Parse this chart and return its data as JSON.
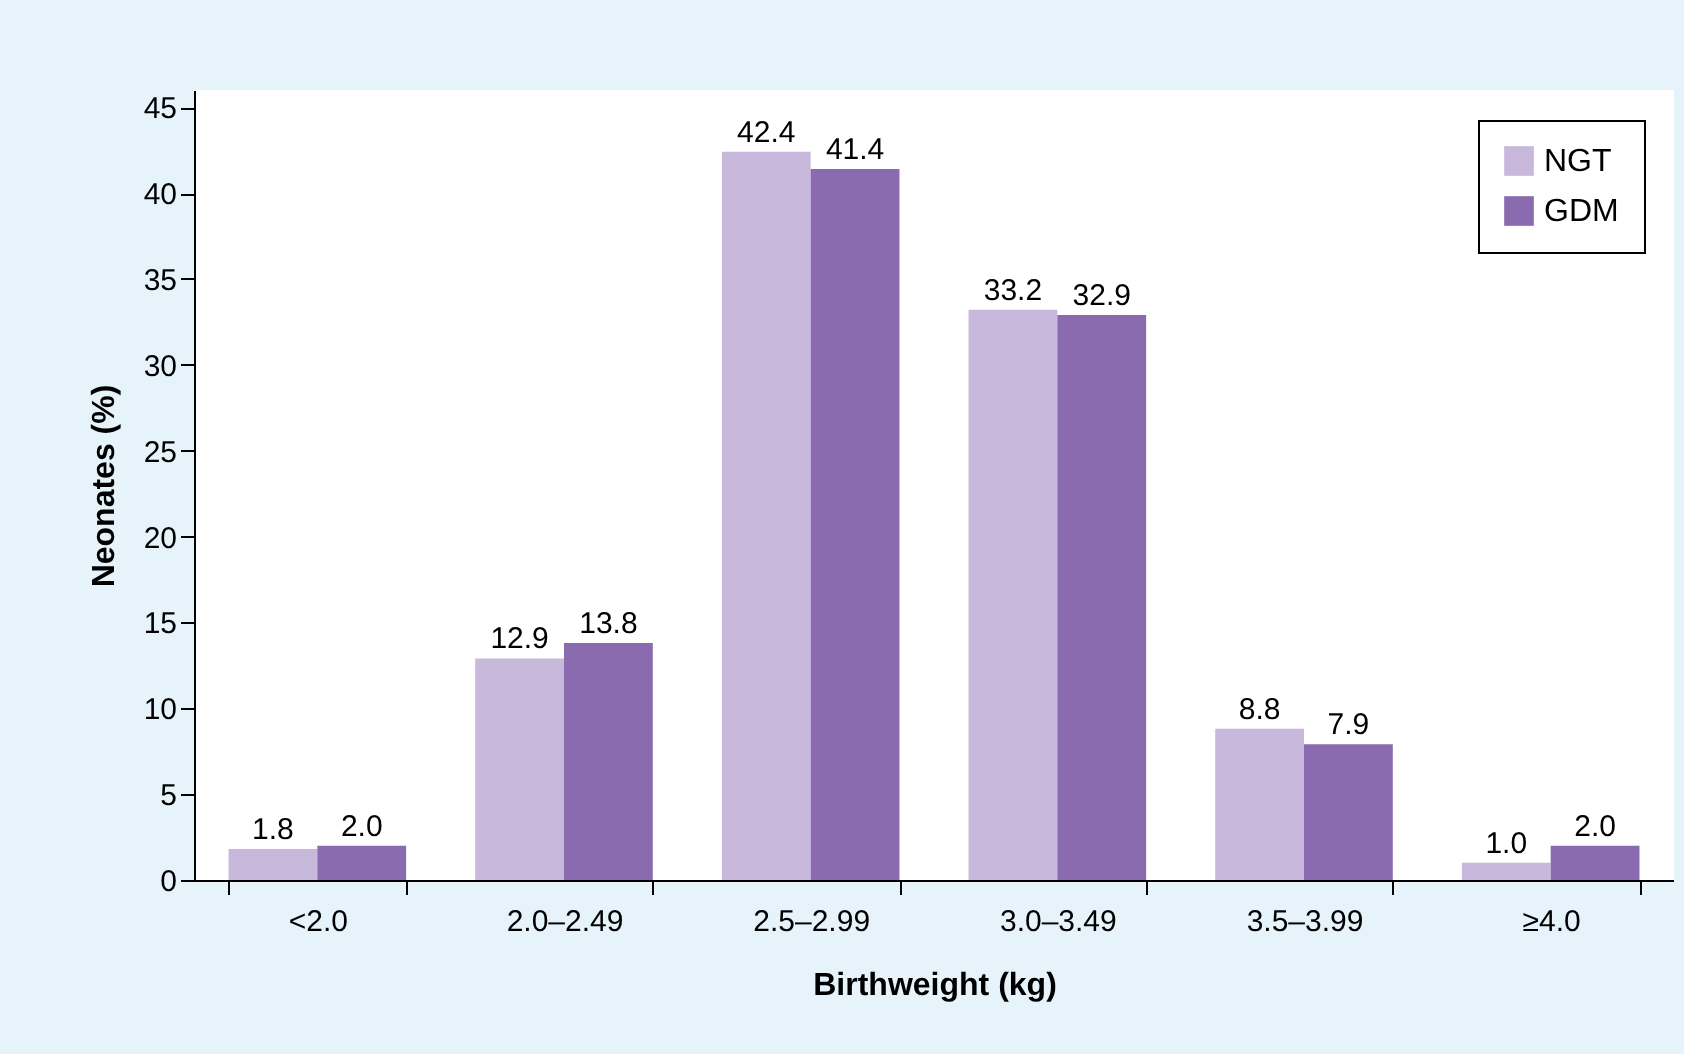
{
  "chart_data": {
    "type": "bar",
    "xlabel": "Birthweight (kg)",
    "ylabel": "Neonates (%)",
    "categories": [
      "<2.0",
      "2.0–2.49",
      "2.5–2.99",
      "3.0–3.49",
      "3.5–3.99",
      "≥4.0"
    ],
    "series": [
      {
        "name": "NGT",
        "color": "#c8b9dc",
        "values": [
          1.8,
          12.9,
          42.4,
          33.2,
          8.8,
          1.0
        ],
        "value_labels": [
          "1.8",
          "12.9",
          "42.4",
          "33.2",
          "8.8",
          "1.0"
        ]
      },
      {
        "name": "GDM",
        "color": "#8a6bb0",
        "values": [
          2.0,
          13.8,
          41.4,
          32.9,
          7.9,
          2.0
        ],
        "value_labels": [
          "2.0",
          "13.8",
          "41.4",
          "32.9",
          "7.9",
          "2.0"
        ]
      }
    ],
    "ylim": [
      0,
      46
    ],
    "yticks": [
      0,
      5,
      10,
      15,
      20,
      25,
      30,
      35,
      40,
      45
    ],
    "grid": false,
    "legend": "top right"
  }
}
